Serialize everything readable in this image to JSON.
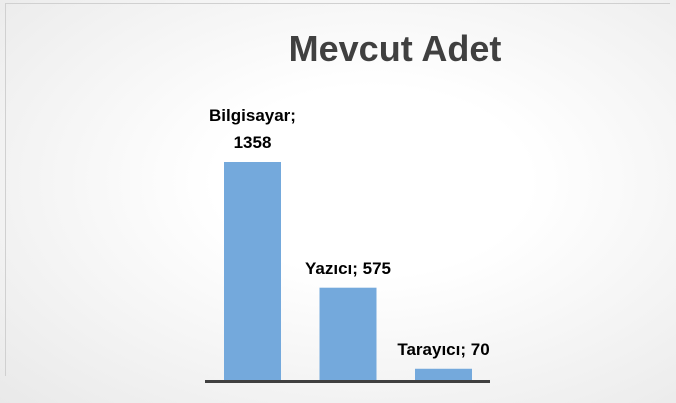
{
  "chart_data": {
    "type": "bar",
    "title": "Mevcut Adet",
    "values": [
      1358,
      575,
      70
    ],
    "value_labels": [
      "Bilgisayar; 1358",
      "Yazıcı; 575",
      "Tarayıcı; 70"
    ],
    "color": "#74a9dc"
  }
}
